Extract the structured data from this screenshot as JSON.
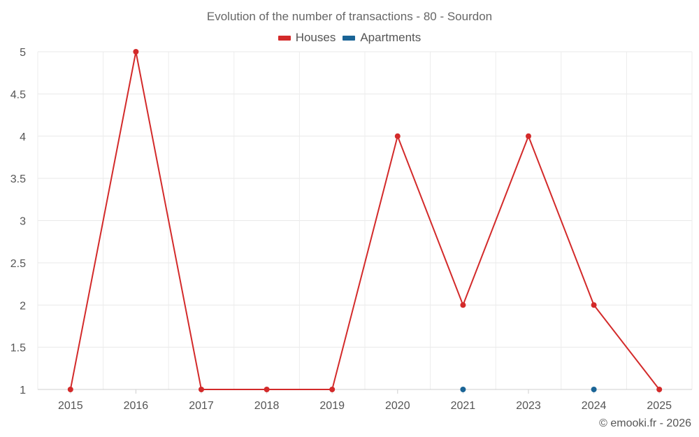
{
  "chart_data": {
    "type": "line",
    "title": "Evolution of the number of transactions - 80 - Sourdon",
    "categories": [
      "2015",
      "2016",
      "2017",
      "2018",
      "2019",
      "2020",
      "2021",
      "2023",
      "2024",
      "2025"
    ],
    "series": [
      {
        "name": "Houses",
        "color": "#d32a2a",
        "values": [
          1,
          5,
          1,
          1,
          1,
          4,
          2,
          4,
          2,
          1
        ]
      },
      {
        "name": "Apartments",
        "color": "#1a6496",
        "values": [
          null,
          null,
          null,
          null,
          null,
          null,
          1,
          null,
          1,
          null
        ]
      }
    ],
    "ylim": [
      1,
      5
    ],
    "yticks": [
      "1",
      "1.5",
      "2",
      "2.5",
      "3",
      "3.5",
      "4",
      "4.5",
      "5"
    ],
    "grid": true,
    "legend_position": "top-center",
    "xlabel": "",
    "ylabel": ""
  },
  "credit": "© emooki.fr - 2026"
}
